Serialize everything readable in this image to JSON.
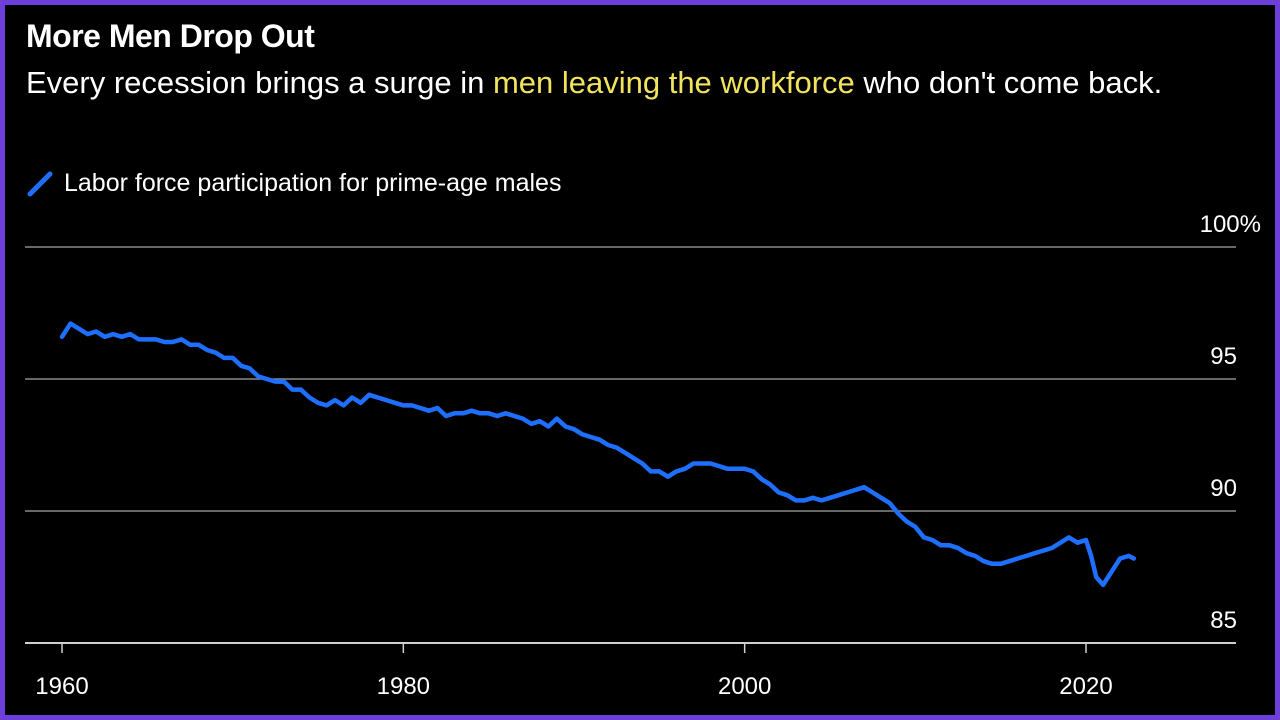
{
  "title": "More Men Drop Out",
  "subtitle": {
    "before": "Every recession brings a surge in ",
    "highlight": "men leaving the workforce",
    "after": " who don't come back."
  },
  "colors": {
    "series": "#1f6fff",
    "highlight": "#f2e35e",
    "frame": "#6b3fd8",
    "background": "#000000",
    "grid": "#8a8a8a"
  },
  "chart_data": {
    "type": "line",
    "title": "More Men Drop Out",
    "subtitle": "Every recession brings a surge in men leaving the workforce who don't come back.",
    "xlabel": "",
    "ylabel": "",
    "xlim": [
      1960,
      2023
    ],
    "ylim": [
      85,
      100
    ],
    "grid": true,
    "legend": "top-left",
    "x_ticks": [
      "1960",
      "1980",
      "2000",
      "2020"
    ],
    "y_ticks": [
      "85",
      "90",
      "95",
      "100%"
    ],
    "series": [
      {
        "name": "Labor force participation for prime-age males",
        "x": [
          1960,
          1960.5,
          1961,
          1961.5,
          1962,
          1962.5,
          1963,
          1963.5,
          1964,
          1964.5,
          1965,
          1965.5,
          1966,
          1966.5,
          1967,
          1967.5,
          1968,
          1968.5,
          1969,
          1969.5,
          1970,
          1970.5,
          1971,
          1971.5,
          1972,
          1972.5,
          1973,
          1973.5,
          1974,
          1974.5,
          1975,
          1975.5,
          1976,
          1976.5,
          1977,
          1977.5,
          1978,
          1978.5,
          1979,
          1979.5,
          1980,
          1980.5,
          1981,
          1981.5,
          1982,
          1982.5,
          1983,
          1983.5,
          1984,
          1984.5,
          1985,
          1985.5,
          1986,
          1986.5,
          1987,
          1987.5,
          1988,
          1988.5,
          1989,
          1989.5,
          1990,
          1990.5,
          1991,
          1991.5,
          1992,
          1992.5,
          1993,
          1993.5,
          1994,
          1994.5,
          1995,
          1995.5,
          1996,
          1996.5,
          1997,
          1997.5,
          1998,
          1998.5,
          1999,
          1999.5,
          2000,
          2000.5,
          2001,
          2001.5,
          2002,
          2002.5,
          2003,
          2003.5,
          2004,
          2004.5,
          2005,
          2005.5,
          2006,
          2006.5,
          2007,
          2007.5,
          2008,
          2008.5,
          2009,
          2009.5,
          2010,
          2010.5,
          2011,
          2011.5,
          2012,
          2012.5,
          2013,
          2013.5,
          2014,
          2014.5,
          2015,
          2015.5,
          2016,
          2016.5,
          2017,
          2017.5,
          2018,
          2018.5,
          2019,
          2019.5,
          2020,
          2020.3,
          2020.6,
          2021,
          2021.5,
          2022,
          2022.5,
          2022.8
        ],
        "values": [
          96.6,
          97.1,
          96.9,
          96.7,
          96.8,
          96.6,
          96.7,
          96.6,
          96.7,
          96.5,
          96.5,
          96.5,
          96.4,
          96.4,
          96.5,
          96.3,
          96.3,
          96.1,
          96.0,
          95.8,
          95.8,
          95.5,
          95.4,
          95.1,
          95.0,
          94.9,
          94.9,
          94.6,
          94.6,
          94.3,
          94.1,
          94.0,
          94.2,
          94.0,
          94.3,
          94.1,
          94.4,
          94.3,
          94.2,
          94.1,
          94.0,
          94.0,
          93.9,
          93.8,
          93.9,
          93.6,
          93.7,
          93.7,
          93.8,
          93.7,
          93.7,
          93.6,
          93.7,
          93.6,
          93.5,
          93.3,
          93.4,
          93.2,
          93.5,
          93.2,
          93.1,
          92.9,
          92.8,
          92.7,
          92.5,
          92.4,
          92.2,
          92.0,
          91.8,
          91.5,
          91.5,
          91.3,
          91.5,
          91.6,
          91.8,
          91.8,
          91.8,
          91.7,
          91.6,
          91.6,
          91.6,
          91.5,
          91.2,
          91.0,
          90.7,
          90.6,
          90.4,
          90.4,
          90.5,
          90.4,
          90.5,
          90.6,
          90.7,
          90.8,
          90.9,
          90.7,
          90.5,
          90.3,
          89.9,
          89.6,
          89.4,
          89.0,
          88.9,
          88.7,
          88.7,
          88.6,
          88.4,
          88.3,
          88.1,
          88.0,
          88.0,
          88.1,
          88.2,
          88.3,
          88.4,
          88.5,
          88.6,
          88.8,
          89.0,
          88.8,
          88.9,
          88.3,
          87.5,
          87.2,
          87.7,
          88.2,
          88.3,
          88.2
        ]
      }
    ]
  }
}
